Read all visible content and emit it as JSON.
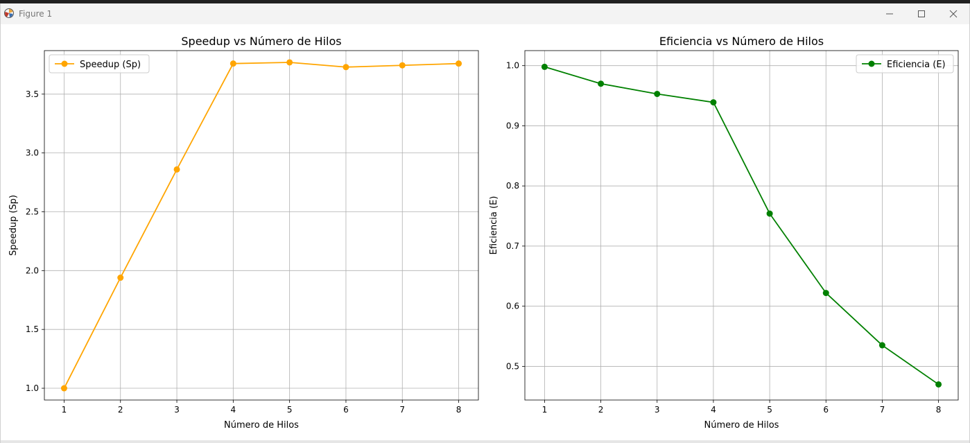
{
  "window": {
    "title": "Figure 1",
    "icon": "matplotlib-figure-icon",
    "controls": [
      "minimize-icon",
      "maximize-icon",
      "close-icon"
    ]
  },
  "chart_data": [
    {
      "type": "line",
      "title": "Speedup vs Número de Hilos",
      "xlabel": "Número de Hilos",
      "ylabel": "Speedup (Sp)",
      "x": [
        1,
        2,
        3,
        4,
        5,
        6,
        7,
        8
      ],
      "xticks": [
        "1",
        "2",
        "3",
        "4",
        "5",
        "6",
        "7",
        "8"
      ],
      "xlim": [
        0.65,
        8.35
      ],
      "ylim": [
        0.9,
        3.87
      ],
      "yticks": [
        "1.0",
        "1.5",
        "2.0",
        "2.5",
        "3.0",
        "3.5"
      ],
      "grid": true,
      "legend": "top-left",
      "series": [
        {
          "name": "Speedup (Sp)",
          "color": "#FFA500",
          "marker": "circle",
          "values": [
            1.0,
            1.94,
            2.86,
            3.76,
            3.77,
            3.73,
            3.745,
            3.76
          ]
        }
      ]
    },
    {
      "type": "line",
      "title": "Eficiencia vs Número de Hilos",
      "xlabel": "Número de Hilos",
      "ylabel": "Eficiencia (E)",
      "x": [
        1,
        2,
        3,
        4,
        5,
        6,
        7,
        8
      ],
      "xticks": [
        "1",
        "2",
        "3",
        "4",
        "5",
        "6",
        "7",
        "8"
      ],
      "xlim": [
        0.65,
        8.35
      ],
      "ylim": [
        0.444,
        1.025
      ],
      "yticks": [
        "0.5",
        "0.6",
        "0.7",
        "0.8",
        "0.9",
        "1.0"
      ],
      "grid": true,
      "legend": "top-right",
      "series": [
        {
          "name": "Eficiencia (E)",
          "color": "#008000",
          "marker": "circle",
          "values": [
            0.998,
            0.97,
            0.953,
            0.939,
            0.754,
            0.622,
            0.535,
            0.47
          ]
        }
      ]
    }
  ]
}
